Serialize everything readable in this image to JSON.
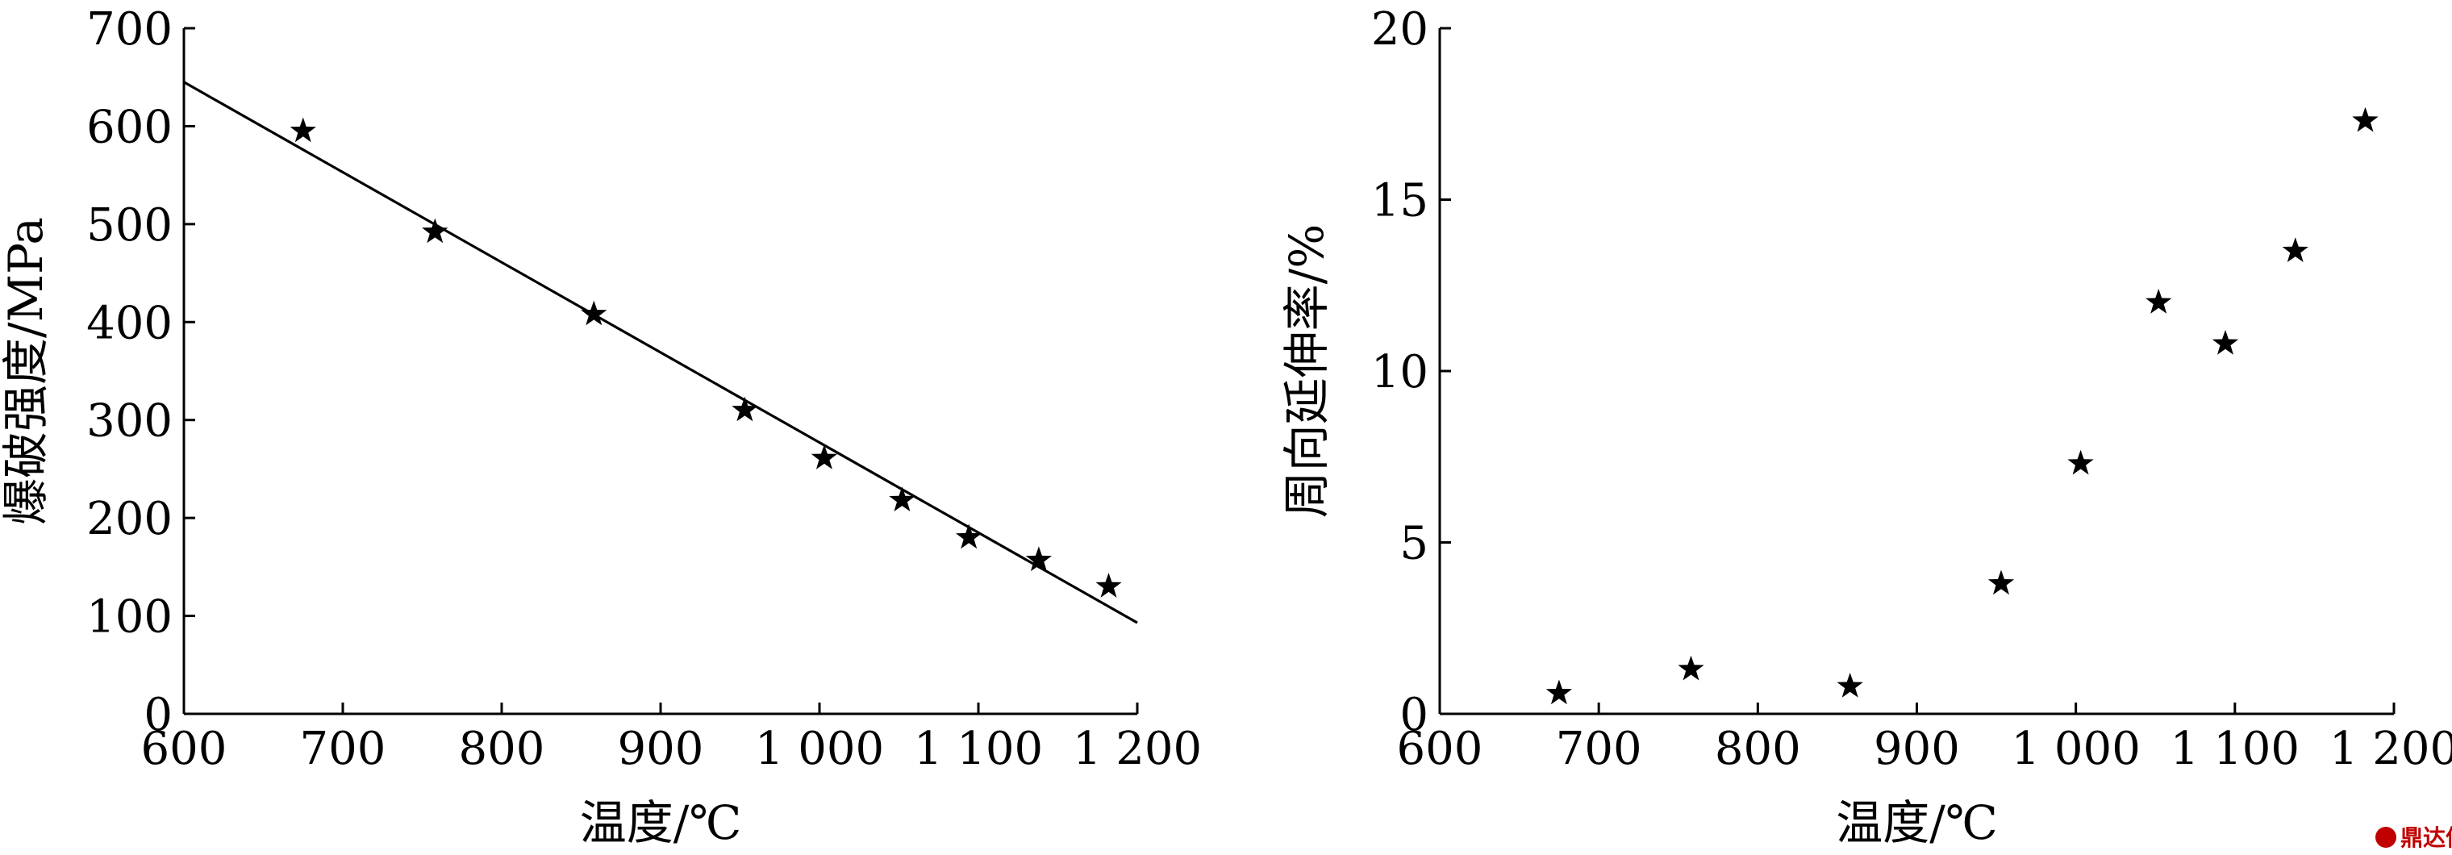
{
  "chart_data": [
    {
      "type": "scatter",
      "xlabel": "温度/℃",
      "ylabel": "爆破强度/MPa",
      "xlim": [
        600,
        1200
      ],
      "ylim": [
        0,
        700
      ],
      "xticks": [
        600,
        700,
        800,
        900,
        1000,
        1100,
        1200
      ],
      "xtick_labels": [
        "600",
        "700",
        "800",
        "900",
        "1 000",
        "1 100",
        "1 200"
      ],
      "yticks": [
        0,
        100,
        200,
        300,
        400,
        500,
        600,
        700
      ],
      "ytick_labels": [
        "0",
        "100",
        "200",
        "300",
        "400",
        "500",
        "600",
        "700"
      ],
      "grid": false,
      "marker": "star",
      "series": [
        {
          "x": [
            675,
            758,
            858,
            953,
            1003,
            1052,
            1094,
            1138,
            1182
          ],
          "y": [
            595,
            492,
            408,
            310,
            261,
            218,
            180,
            157,
            130
          ]
        }
      ],
      "fit_line": {
        "x": [
          600,
          1200
        ],
        "y": [
          645,
          93
        ]
      }
    },
    {
      "type": "scatter",
      "xlabel": "温度/℃",
      "ylabel": "周向延伸率/%",
      "xlim": [
        600,
        1200
      ],
      "ylim": [
        0,
        20
      ],
      "xticks": [
        600,
        700,
        800,
        900,
        1000,
        1100,
        1200
      ],
      "xtick_labels": [
        "600",
        "700",
        "800",
        "900",
        "1 000",
        "1 100",
        "1 200"
      ],
      "yticks": [
        0,
        5,
        10,
        15,
        20
      ],
      "ytick_labels": [
        "0",
        "5",
        "10",
        "15",
        "20"
      ],
      "grid": false,
      "marker": "star",
      "series": [
        {
          "x": [
            675,
            758,
            858,
            953,
            1003,
            1052,
            1094,
            1138,
            1182
          ],
          "y": [
            0.6,
            1.3,
            0.8,
            3.8,
            7.3,
            12.0,
            10.8,
            13.5,
            17.3
          ]
        }
      ]
    }
  ],
  "watermark": {
    "text": "鼎达信",
    "icon": "seal-icon",
    "color": "#c00000"
  }
}
